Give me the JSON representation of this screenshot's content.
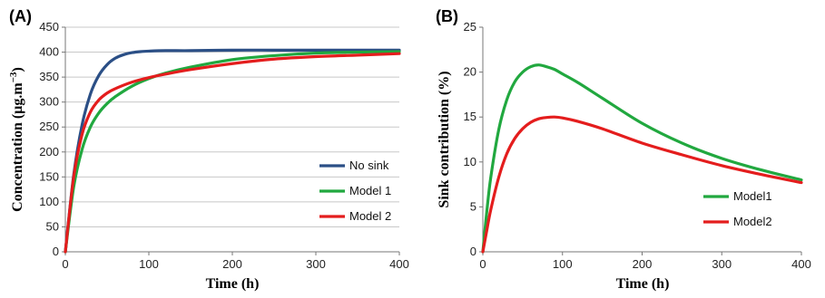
{
  "chart_data": [
    {
      "panel_label": "(A)",
      "type": "line",
      "xlabel": "Time (h)",
      "ylabel": "Concentration (µg.m",
      "ylabel_sup": "−3",
      "ylabel_close": ")",
      "xlim": [
        0,
        400
      ],
      "ylim": [
        0,
        450
      ],
      "xticks": [
        0,
        100,
        200,
        300,
        400
      ],
      "yticks": [
        0,
        50,
        100,
        150,
        200,
        250,
        300,
        350,
        400,
        450
      ],
      "grid": true,
      "legend_position": "right",
      "series": [
        {
          "name": "No sink",
          "color": "#2b4f86",
          "x": [
            0,
            10,
            20,
            30,
            40,
            50,
            60,
            70,
            80,
            90,
            100,
            120,
            150,
            200,
            250,
            300,
            350,
            400
          ],
          "y": [
            0,
            154,
            254,
            316,
            353,
            375,
            388,
            395,
            399,
            401,
            402,
            403,
            403,
            404,
            404,
            404,
            404,
            404
          ]
        },
        {
          "name": "Model 1",
          "color": "#21a83f",
          "x": [
            0,
            10,
            20,
            30,
            40,
            50,
            60,
            80,
            100,
            120,
            150,
            200,
            250,
            300,
            350,
            400
          ],
          "y": [
            0,
            130,
            205,
            250,
            278,
            297,
            311,
            332,
            347,
            358,
            370,
            385,
            393,
            398,
            400,
            401
          ]
        },
        {
          "name": "Model 2",
          "color": "#e41d1d",
          "x": [
            0,
            10,
            20,
            30,
            40,
            50,
            60,
            80,
            100,
            120,
            150,
            200,
            250,
            300,
            350,
            400
          ],
          "y": [
            0,
            150,
            235,
            280,
            304,
            318,
            327,
            340,
            349,
            356,
            365,
            377,
            386,
            391,
            394,
            397
          ]
        }
      ]
    },
    {
      "panel_label": "(B)",
      "type": "line",
      "xlabel": "Time (h)",
      "ylabel": "Sink contribution (%)",
      "xlim": [
        0,
        400
      ],
      "ylim": [
        0,
        25
      ],
      "xticks": [
        0,
        100,
        200,
        300,
        400
      ],
      "yticks": [
        0,
        5,
        10,
        15,
        20,
        25
      ],
      "grid": false,
      "legend_position": "bottom-right",
      "series": [
        {
          "name": "Model1",
          "color": "#21a83f",
          "x": [
            0,
            5,
            10,
            20,
            30,
            40,
            50,
            60,
            70,
            80,
            90,
            100,
            120,
            150,
            200,
            250,
            300,
            350,
            400
          ],
          "y": [
            0,
            4.5,
            8.3,
            13.6,
            16.9,
            18.9,
            20.0,
            20.6,
            20.8,
            20.6,
            20.3,
            19.8,
            18.8,
            17.1,
            14.3,
            12.1,
            10.4,
            9.1,
            8.0
          ]
        },
        {
          "name": "Model2",
          "color": "#e41d1d",
          "x": [
            0,
            5,
            10,
            20,
            30,
            40,
            50,
            60,
            70,
            80,
            90,
            100,
            120,
            150,
            200,
            250,
            300,
            350,
            400
          ],
          "y": [
            0,
            2.4,
            4.7,
            8.3,
            10.9,
            12.6,
            13.7,
            14.4,
            14.8,
            14.95,
            15.0,
            14.9,
            14.5,
            13.7,
            12.1,
            10.8,
            9.6,
            8.6,
            7.7
          ]
        }
      ]
    }
  ]
}
